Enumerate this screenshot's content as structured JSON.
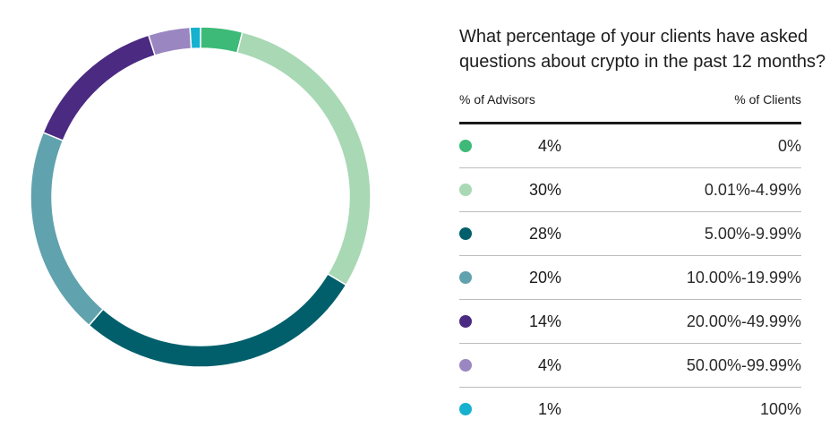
{
  "chart_data": {
    "type": "pie",
    "title": "What percentage of your clients have asked questions about crypto in the past 12 months?",
    "column_headers": {
      "left": "% of Advisors",
      "right": "% of Clients"
    },
    "slices": [
      {
        "label": "0%",
        "value": 4,
        "value_label": "4%",
        "color": "#3dba78"
      },
      {
        "label": "0.01%-4.99%",
        "value": 30,
        "value_label": "30%",
        "color": "#a8d8b4"
      },
      {
        "label": "5.00%-9.99%",
        "value": 28,
        "value_label": "28%",
        "color": "#005f6b"
      },
      {
        "label": "10.00%-19.99%",
        "value": 20,
        "value_label": "20%",
        "color": "#60a2ad"
      },
      {
        "label": "20.00%-49.99%",
        "value": 14,
        "value_label": "14%",
        "color": "#4b2a82"
      },
      {
        "label": "50.00%-99.99%",
        "value": 4,
        "value_label": "4%",
        "color": "#9a87c1"
      },
      {
        "label": "100%",
        "value": 1,
        "value_label": "1%",
        "color": "#16b1cf"
      }
    ]
  }
}
